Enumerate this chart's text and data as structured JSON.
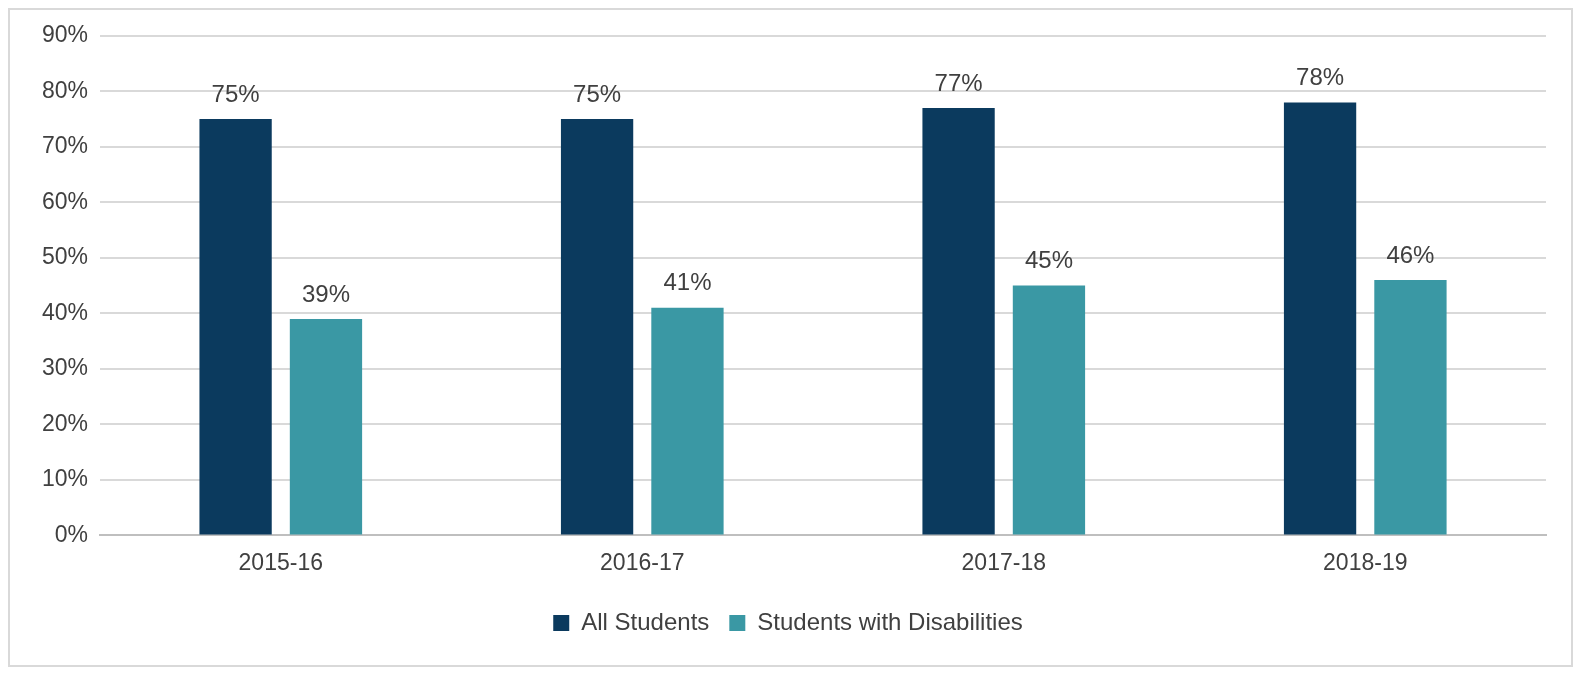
{
  "chart_data": {
    "type": "bar",
    "categories": [
      "2015-16",
      "2016-17",
      "2017-18",
      "2018-19"
    ],
    "series": [
      {
        "name": "All Students",
        "color": "#0b3a5e",
        "values": [
          75,
          75,
          77,
          78
        ],
        "value_labels": [
          "75%",
          "75%",
          "77%",
          "78%"
        ]
      },
      {
        "name": "Students with Disabilities",
        "color": "#3a98a4",
        "values": [
          39,
          41,
          45,
          46
        ],
        "value_labels": [
          "39%",
          "41%",
          "45%",
          "46%"
        ]
      }
    ],
    "ylim": [
      0,
      90
    ],
    "yticks": [
      {
        "value": 0,
        "label": "0%"
      },
      {
        "value": 10,
        "label": "10%"
      },
      {
        "value": 20,
        "label": "20%"
      },
      {
        "value": 30,
        "label": "30%"
      },
      {
        "value": 40,
        "label": "40%"
      },
      {
        "value": 50,
        "label": "50%"
      },
      {
        "value": 60,
        "label": "60%"
      },
      {
        "value": 70,
        "label": "70%"
      },
      {
        "value": 80,
        "label": "80%"
      },
      {
        "value": 90,
        "label": "90%"
      }
    ],
    "grid": "y",
    "legend": "bottom"
  }
}
